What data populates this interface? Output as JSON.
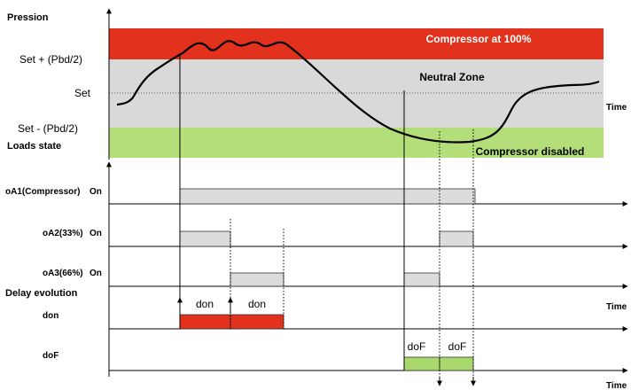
{
  "labels": {
    "pression": "Pression",
    "set_plus": "Set + (Pbd/2)",
    "set": "Set",
    "set_minus": "Set - (Pbd/2)",
    "loads_state": "Loads state",
    "time": "Time",
    "delay_evolution": "Delay evolution",
    "on": "On"
  },
  "zones": {
    "compressor_100": "Compressor at 100%",
    "neutral": "Neutral Zone",
    "disabled": "Compressor disabled"
  },
  "outputs": {
    "oa1": "oA1(Compressor)",
    "oa2": "oA2(33%)",
    "oa3": "oA3(66%)"
  },
  "delays": {
    "don": "don",
    "dof": "doF",
    "don_bar_1": "don",
    "don_bar_2": "don",
    "dof_bar_1": "doF",
    "dof_bar_2": "doF"
  },
  "colors": {
    "red_zone": "#e2321e",
    "neutral_zone": "#d9d9d9",
    "green_zone": "#b3de79",
    "bar_gray": "#dcdcdc",
    "bar_red": "#e2321e",
    "bar_green": "#a9d86e"
  }
}
